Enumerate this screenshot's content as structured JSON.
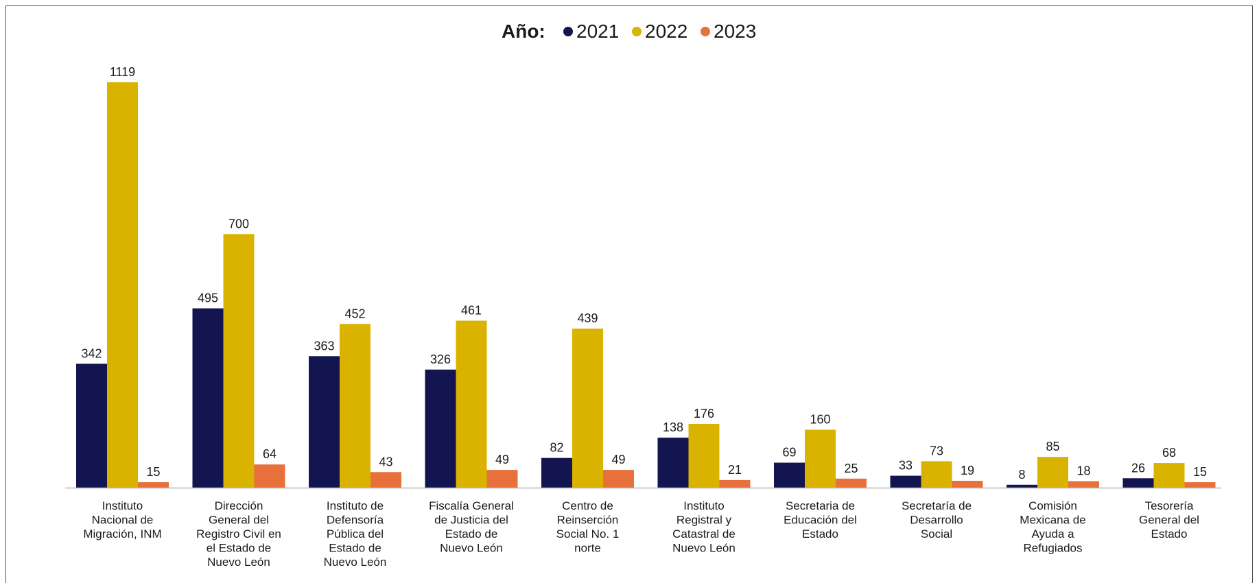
{
  "chart_data": {
    "type": "bar",
    "legend_title": "Año:",
    "legend_position": "top-center",
    "grid": false,
    "categories": [
      [
        "Instituto",
        "Nacional de",
        "Migración, INM"
      ],
      [
        "Dirección",
        "General del",
        "Registro Civil en",
        "el Estado de",
        "Nuevo León"
      ],
      [
        "Instituto de",
        "Defensoría",
        "Pública del",
        "Estado de",
        "Nuevo León"
      ],
      [
        "Fiscalía General",
        "de Justicia del",
        "Estado de",
        "Nuevo León"
      ],
      [
        "Centro de",
        "Reinserción",
        "Social No. 1",
        "norte"
      ],
      [
        "Instituto",
        "Registral y",
        "Catastral de",
        "Nuevo León"
      ],
      [
        "Secretaria de",
        "Educación del",
        "Estado"
      ],
      [
        "Secretaría de",
        "Desarrollo",
        "Social"
      ],
      [
        "Comisión",
        "Mexicana de",
        "Ayuda a",
        "Refugiados"
      ],
      [
        "Tesorería",
        "General del",
        "Estado"
      ]
    ],
    "series": [
      {
        "name": "2021",
        "color": "#12154f",
        "values": [
          342,
          495,
          363,
          326,
          82,
          138,
          69,
          33,
          8,
          26
        ]
      },
      {
        "name": "2022",
        "color": "#d9b300",
        "values": [
          1119,
          700,
          452,
          461,
          439,
          176,
          160,
          73,
          85,
          68
        ]
      },
      {
        "name": "2023",
        "color": "#e8703a",
        "values": [
          15,
          64,
          43,
          49,
          49,
          21,
          25,
          19,
          18,
          15
        ]
      }
    ],
    "ylim": [
      0,
      1119
    ]
  }
}
